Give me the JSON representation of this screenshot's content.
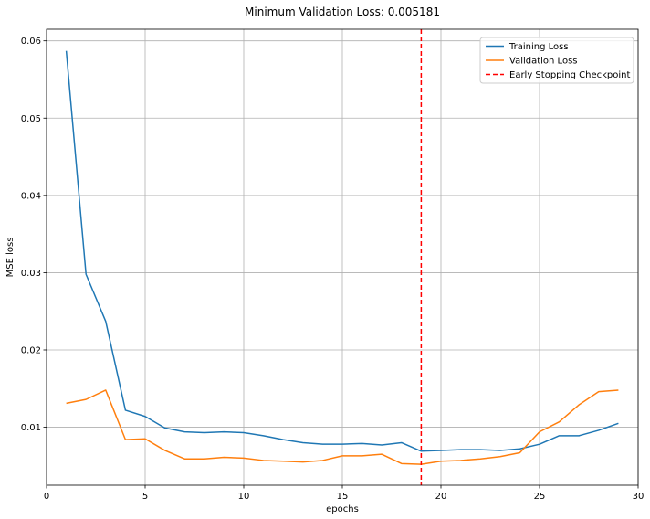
{
  "chart_data": {
    "type": "line",
    "title": "Minimum Validation Loss: 0.005181",
    "xlabel": "epochs",
    "ylabel": "MSE loss",
    "xlim": [
      0,
      30
    ],
    "ylim": [
      0.0025,
      0.0615
    ],
    "xticks": [
      0,
      5,
      10,
      15,
      20,
      25,
      30
    ],
    "yticks": [
      0.01,
      0.02,
      0.03,
      0.04,
      0.05,
      0.06
    ],
    "xtick_labels": [
      "0",
      "5",
      "10",
      "15",
      "20",
      "25",
      "30"
    ],
    "ytick_labels": [
      "0.01",
      "0.02",
      "0.03",
      "0.04",
      "0.05",
      "0.06"
    ],
    "grid": true,
    "legend_position": "top-right",
    "series": [
      {
        "name": "Training Loss",
        "color": "#1f77b4",
        "style": "solid",
        "x": [
          1,
          2,
          3,
          4,
          5,
          6,
          7,
          8,
          9,
          10,
          11,
          12,
          13,
          14,
          15,
          16,
          17,
          18,
          19,
          20,
          21,
          22,
          23,
          24,
          25,
          26,
          27,
          28,
          29
        ],
        "values": [
          0.0587,
          0.0298,
          0.0237,
          0.0122,
          0.0114,
          0.0099,
          0.0094,
          0.0093,
          0.0094,
          0.0093,
          0.0089,
          0.0084,
          0.008,
          0.0078,
          0.0078,
          0.0079,
          0.0077,
          0.008,
          0.0069,
          0.007,
          0.0071,
          0.0071,
          0.007,
          0.0072,
          0.0078,
          0.0089,
          0.0089,
          0.0096,
          0.0105
        ]
      },
      {
        "name": "Validation Loss",
        "color": "#ff7f0e",
        "style": "solid",
        "x": [
          1,
          2,
          3,
          4,
          5,
          6,
          7,
          8,
          9,
          10,
          11,
          12,
          13,
          14,
          15,
          16,
          17,
          18,
          19,
          20,
          21,
          22,
          23,
          24,
          25,
          26,
          27,
          28,
          29
        ],
        "values": [
          0.0131,
          0.0136,
          0.0148,
          0.0084,
          0.0085,
          0.007,
          0.0059,
          0.0059,
          0.0061,
          0.006,
          0.0057,
          0.0056,
          0.0055,
          0.0057,
          0.0063,
          0.0063,
          0.0065,
          0.0053,
          0.0052,
          0.0056,
          0.0057,
          0.0059,
          0.0062,
          0.0067,
          0.0094,
          0.0107,
          0.0129,
          0.0146,
          0.0148
        ]
      }
    ],
    "vlines": [
      {
        "name": "Early Stopping Checkpoint",
        "x": 19,
        "color": "#ff0000",
        "style": "dashed"
      }
    ]
  }
}
